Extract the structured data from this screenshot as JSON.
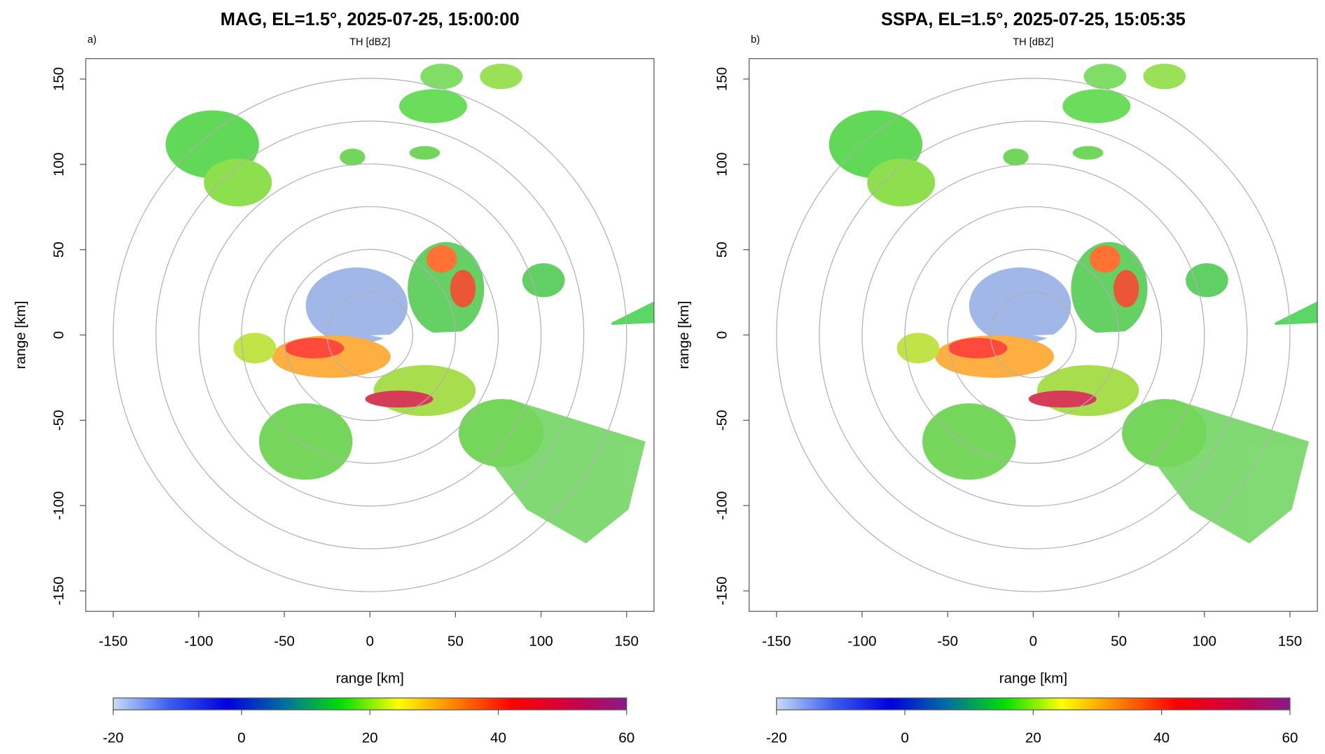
{
  "chart_data": [
    {
      "type": "ppi",
      "title": "MAG, EL=1.5°, 2025-07-25, 15:00:00",
      "subtitle": "TH [dBZ]",
      "panel_label": "a)",
      "x_label": "range [km]",
      "y_label": "range [km]",
      "xlim": [
        -166,
        166
      ],
      "ylim": [
        -162,
        162
      ],
      "xticks": [
        -150,
        -100,
        -50,
        0,
        50,
        100,
        150
      ],
      "yticks": [
        -150,
        -100,
        -50,
        0,
        50,
        100,
        150
      ],
      "colorbar": {
        "lim": [
          -20,
          60
        ],
        "ticks": [
          -20,
          0,
          20,
          40,
          60
        ],
        "colors": [
          "#c6dcf6",
          "#3a5cf0",
          "#0000e0",
          "#0070a0",
          "#00e000",
          "#ffff00",
          "#ff8000",
          "#ff0000",
          "#d00040",
          "#8a1a8a"
        ]
      }
    },
    {
      "type": "ppi",
      "title": "SSPA, EL=1.5°, 2025-07-25, 15:05:35",
      "subtitle": "TH [dBZ]",
      "panel_label": "b)",
      "x_label": "range [km]",
      "y_label": "range [km]",
      "xlim": [
        -166,
        166
      ],
      "ylim": [
        -162,
        162
      ],
      "xticks": [
        -150,
        -100,
        -50,
        0,
        50,
        100,
        150
      ],
      "yticks": [
        -150,
        -100,
        -50,
        0,
        50,
        100,
        150
      ],
      "colorbar": {
        "lim": [
          -20,
          60
        ],
        "ticks": [
          -20,
          0,
          20,
          40,
          60
        ],
        "colors": [
          "#c6dcf6",
          "#3a5cf0",
          "#0000e0",
          "#0070a0",
          "#00e000",
          "#ffff00",
          "#ff8000",
          "#ff0000",
          "#d00040",
          "#8a1a8a"
        ]
      }
    }
  ]
}
